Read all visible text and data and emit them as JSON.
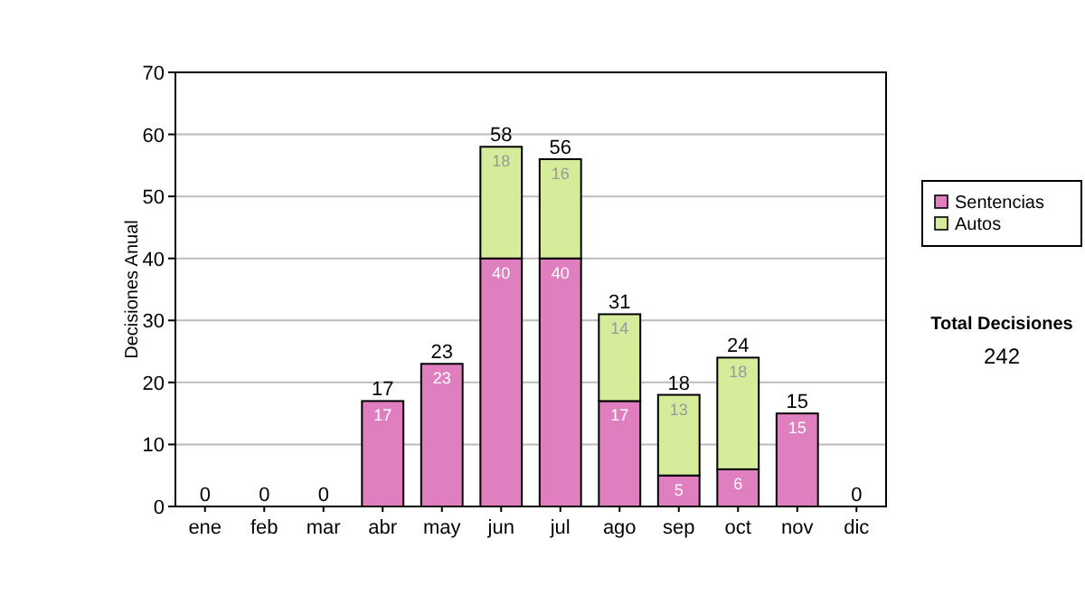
{
  "chart_data": {
    "type": "bar",
    "stacked": true,
    "ylabel": "Decisiones Anual",
    "categories": [
      "ene",
      "feb",
      "mar",
      "abr",
      "may",
      "jun",
      "jul",
      "ago",
      "sep",
      "oct",
      "nov",
      "dic"
    ],
    "series": [
      {
        "name": "Sentencias",
        "color": "#e07fbf",
        "values": [
          0,
          0,
          0,
          17,
          23,
          40,
          40,
          17,
          5,
          6,
          15,
          0
        ],
        "value_labels": [
          null,
          null,
          null,
          "17",
          "23",
          "40",
          "40",
          "17",
          "5",
          "6",
          "15",
          null
        ]
      },
      {
        "name": "Autos",
        "color": "#d6ec9a",
        "values": [
          0,
          0,
          0,
          0,
          0,
          18,
          16,
          14,
          13,
          18,
          0,
          0
        ],
        "value_labels": [
          null,
          null,
          null,
          null,
          null,
          "18",
          "16",
          "14",
          "13",
          "18",
          null,
          null
        ]
      }
    ],
    "totals": [
      "0",
      "0",
      "0",
      "17",
      "23",
      "58",
      "56",
      "31",
      "18",
      "24",
      "15",
      "0"
    ],
    "ylim": [
      0,
      70
    ],
    "yticks": [
      0,
      10,
      20,
      30,
      40,
      50,
      60,
      70
    ],
    "grid": "y",
    "legend": "right",
    "annotations": [
      "Total Decisiones",
      "242"
    ]
  }
}
